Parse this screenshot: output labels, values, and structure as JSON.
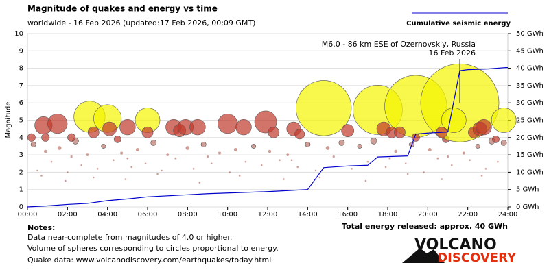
{
  "chart_data": {
    "type": "bubble",
    "title": "Magnitude of quakes and energy vs time",
    "subtitle": "worldwide - 16 Feb 2026 (updated:17 Feb 2026, 00:09 GMT)",
    "ylabel": "Magnitude",
    "xlim": [
      0,
      24
    ],
    "xticks": [
      {
        "value": 0,
        "label": "00:00"
      },
      {
        "value": 2,
        "label": "02:00"
      },
      {
        "value": 4,
        "label": "04:00"
      },
      {
        "value": 6,
        "label": "06:00"
      },
      {
        "value": 8,
        "label": "08:00"
      },
      {
        "value": 10,
        "label": "10:00"
      },
      {
        "value": 12,
        "label": "12:00"
      },
      {
        "value": 14,
        "label": "14:00"
      },
      {
        "value": 16,
        "label": "16:00"
      },
      {
        "value": 18,
        "label": "18:00"
      },
      {
        "value": 20,
        "label": "20:00"
      },
      {
        "value": 22,
        "label": "22:00"
      },
      {
        "value": 24,
        "label": "24:00"
      }
    ],
    "ylim": [
      0,
      10
    ],
    "yticks": [
      0,
      1,
      2,
      3,
      4,
      5,
      6,
      7,
      8,
      9,
      10
    ],
    "y2lim": [
      0,
      50
    ],
    "y2ticks": [
      {
        "value": 0,
        "label": "0 GWh"
      },
      {
        "value": 5,
        "label": "5 GWh"
      },
      {
        "value": 10,
        "label": "10 GWh"
      },
      {
        "value": 15,
        "label": "15 GWh"
      },
      {
        "value": 20,
        "label": "20 GWh"
      },
      {
        "value": 25,
        "label": "25 GWh"
      },
      {
        "value": 30,
        "label": "30 GWh"
      },
      {
        "value": 35,
        "label": "35 GWh"
      },
      {
        "value": 40,
        "label": "40 GWh"
      },
      {
        "value": 45,
        "label": "45 GWh"
      },
      {
        "value": 50,
        "label": "50 GWh"
      }
    ],
    "grid": true,
    "series": [
      {
        "color": "#a04030",
        "x": [
          0.3,
          0.5,
          0.9,
          1.2,
          1.6,
          2.0,
          2.4,
          2.7,
          3.0,
          3.5,
          3.8,
          4.3,
          4.7,
          5.2,
          5.5,
          5.9,
          6.3,
          6.7,
          7.0,
          7.4,
          8.0,
          8.3,
          8.8,
          9.2,
          9.6,
          10.1,
          10.4,
          10.9,
          11.3,
          11.7,
          12.1,
          12.6,
          13.0,
          13.5,
          14.0,
          14.4,
          15.0,
          15.3,
          15.7,
          16.2,
          16.6,
          17.0,
          17.3,
          17.9,
          18.4,
          18.9,
          19.2,
          19.8,
          20.1,
          20.5,
          20.9,
          21.2,
          21.8,
          22.1,
          22.5,
          22.9,
          23.2,
          23.5,
          23.8,
          0.7,
          1.9,
          3.3,
          4.9,
          6.5,
          8.6,
          10.6,
          12.8,
          14.6,
          16.9,
          19.0,
          20.7,
          22.7,
          2.2,
          5.0,
          9.0,
          13.2,
          18.1,
          21.0
        ],
        "values": [
          3.6,
          2.1,
          3.2,
          2.6,
          3.4,
          2.0,
          3.8,
          2.4,
          3.0,
          2.2,
          3.5,
          2.7,
          3.1,
          2.3,
          3.3,
          2.5,
          3.7,
          2.1,
          3.0,
          2.8,
          3.4,
          2.2,
          3.6,
          2.5,
          3.1,
          2.0,
          3.3,
          2.6,
          3.5,
          2.4,
          3.2,
          2.7,
          3.0,
          2.3,
          3.6,
          2.1,
          3.4,
          2.9,
          3.7,
          2.2,
          3.5,
          2.6,
          3.8,
          2.3,
          3.2,
          2.5,
          3.6,
          2.0,
          3.3,
          2.8,
          3.9,
          2.4,
          3.1,
          2.7,
          3.5,
          2.2,
          3.8,
          2.6,
          3.7,
          1.8,
          1.5,
          1.7,
          1.6,
          1.9,
          1.4,
          1.8,
          1.6,
          1.7,
          1.5,
          1.9,
          1.6,
          1.8,
          2.9,
          2.8,
          2.9,
          2.7,
          2.8,
          2.9
        ]
      },
      {
        "color": "#f5f500",
        "x": [
          3.1,
          4.0,
          6.0,
          14.8,
          17.5,
          19.4,
          21.6,
          21.3,
          23.8
        ],
        "values": [
          5.2,
          5.1,
          5.0,
          5.7,
          5.6,
          5.8,
          6.0,
          5.0,
          5.0
        ]
      },
      {
        "color": "#c0392b",
        "x": [
          0.2,
          0.8,
          0.9,
          1.5,
          2.2,
          3.3,
          4.1,
          4.5,
          5.0,
          6.0,
          7.3,
          7.6,
          7.9,
          8.5,
          10.0,
          10.8,
          11.9,
          12.3,
          13.3,
          13.6,
          16.0,
          17.8,
          18.2,
          18.6,
          19.4,
          20.7,
          22.3,
          22.6,
          22.8,
          23.4
        ],
        "values": [
          4.0,
          4.7,
          4.0,
          4.8,
          4.0,
          4.3,
          4.5,
          3.9,
          4.6,
          4.3,
          4.6,
          4.4,
          4.6,
          4.6,
          4.8,
          4.6,
          4.9,
          4.3,
          4.5,
          4.2,
          4.4,
          4.5,
          4.3,
          4.3,
          4.0,
          4.3,
          4.3,
          4.5,
          4.6,
          3.9
        ]
      },
      {
        "name": "Cumulative seismic energy",
        "color": "#0000cc",
        "axis": "y2",
        "x": [
          0,
          1,
          2,
          3,
          4,
          5,
          6,
          7,
          8,
          9,
          10,
          11,
          12,
          13,
          14,
          14.8,
          15,
          16,
          17,
          17.5,
          18,
          19,
          19.4,
          20,
          21,
          21.6,
          22,
          23,
          23.9,
          24
        ],
        "values": [
          0,
          0.3,
          0.7,
          1,
          1.8,
          2.3,
          2.9,
          3.2,
          3.5,
          3.8,
          4,
          4.2,
          4.4,
          4.7,
          5,
          11.3,
          11.4,
          11.8,
          12,
          14.4,
          14.5,
          14.7,
          21,
          21.3,
          21.6,
          39.3,
          39.6,
          39.8,
          40.2,
          40.2
        ]
      }
    ],
    "annotation": {
      "lines": [
        "M6.0 - 86 km ESE of Ozernovskiy, Russia",
        "16 Feb 2026"
      ],
      "x": 21.6
    },
    "notes_title": "Notes:",
    "notes": [
      "Data near-complete from magnitudes of 4.0 or higher.",
      "Volume of spheres corresponding to circles proportional to energy.",
      "Quake data: www.volcanodiscovery.com/earthquakes/today.html"
    ],
    "total": "Total energy released: approx. 40 GWh",
    "logo": [
      "VOLCANO",
      "DISCOVERY"
    ]
  }
}
